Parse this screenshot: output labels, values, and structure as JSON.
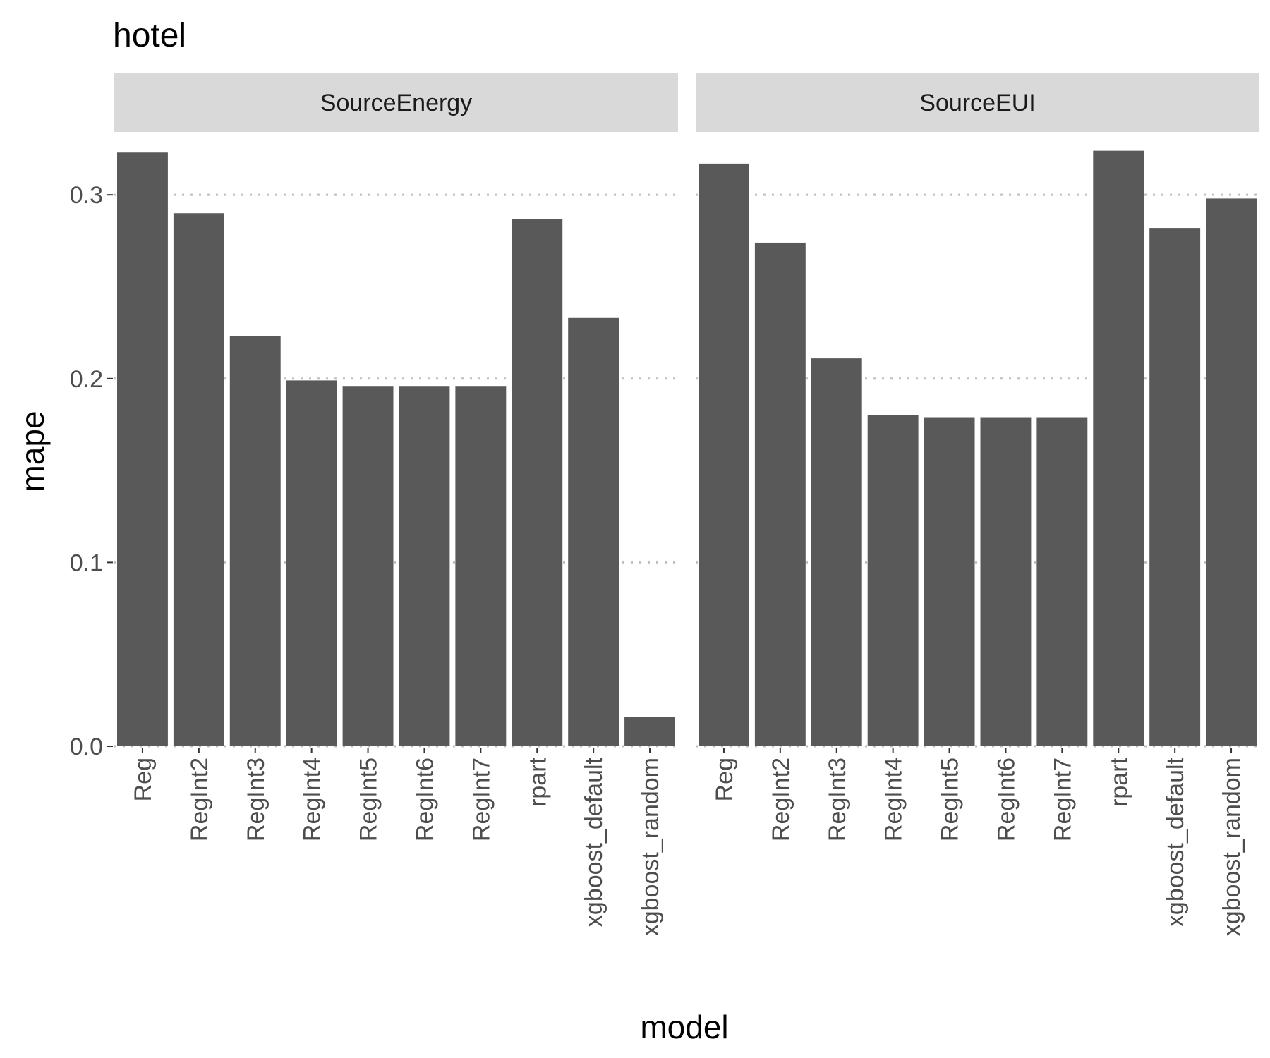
{
  "chart_data": {
    "type": "bar",
    "title": "hotel",
    "xlabel": "model",
    "ylabel": "mape",
    "ylim": [
      0,
      0.33
    ],
    "yticks": [
      "0.0",
      "0.1",
      "0.2",
      "0.3"
    ],
    "ytick_values": [
      0,
      0.1,
      0.2,
      0.3
    ],
    "grid": "major y, dotted",
    "bar_color": "#595959",
    "strip_color": "#d9d9d9",
    "grid_color": "#bfbfbf",
    "categories": [
      "Reg",
      "RegInt2",
      "RegInt3",
      "RegInt4",
      "RegInt5",
      "RegInt6",
      "RegInt7",
      "rpart",
      "xgboost_default",
      "xgboost_random"
    ],
    "panels": [
      {
        "name": "SourceEnergy",
        "values": [
          0.323,
          0.29,
          0.223,
          0.199,
          0.196,
          0.196,
          0.196,
          0.287,
          0.233,
          0.016
        ]
      },
      {
        "name": "SourceEUI",
        "values": [
          0.317,
          0.274,
          0.211,
          0.18,
          0.179,
          0.179,
          0.179,
          0.324,
          0.282,
          0.298
        ]
      }
    ]
  }
}
